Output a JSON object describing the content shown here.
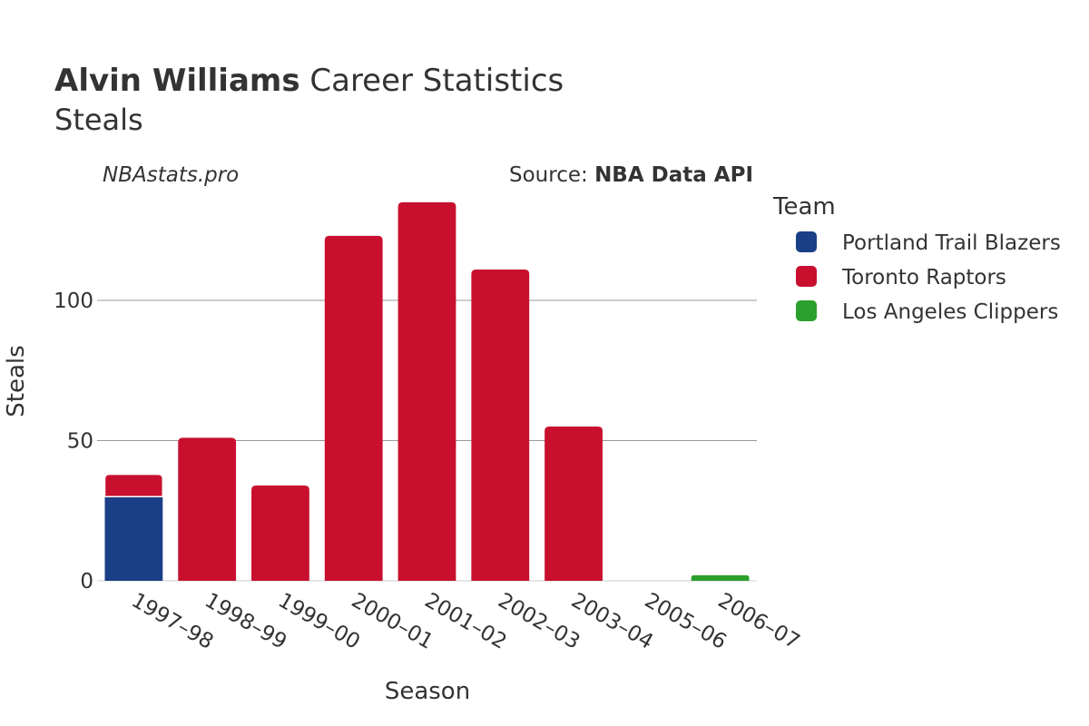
{
  "header": {
    "player_name": "Alvin Williams",
    "title_suffix": " Career Statistics",
    "subtitle": "Steals"
  },
  "watermark": "NBAstats.pro",
  "source": {
    "prefix": "Source: ",
    "name": "NBA Data API"
  },
  "legend": {
    "title": "Team",
    "items": [
      {
        "label": "Portland Trail Blazers",
        "color": "#1b3f86"
      },
      {
        "label": "Toronto Raptors",
        "color": "#c8102e"
      },
      {
        "label": "Los Angeles Clippers",
        "color": "#2ca02c"
      }
    ]
  },
  "chart_data": {
    "type": "bar",
    "stacked": true,
    "title": "Alvin Williams Career Statistics",
    "subtitle": "Steals",
    "xlabel": "Season",
    "ylabel": "Steals",
    "ylim": [
      0,
      135
    ],
    "yticks": [
      0,
      50,
      100
    ],
    "grid": true,
    "legend_position": "right",
    "categories": [
      "1997–98",
      "1998–99",
      "1999–00",
      "2000–01",
      "2001–02",
      "2002–03",
      "2003–04",
      "2005–06",
      "2006–07"
    ],
    "series": [
      {
        "name": "Portland Trail Blazers",
        "color": "#1b3f86",
        "values": [
          30,
          0,
          0,
          0,
          0,
          0,
          0,
          0,
          0
        ]
      },
      {
        "name": "Toronto Raptors",
        "color": "#c8102e",
        "values": [
          8,
          51,
          34,
          123,
          135,
          111,
          55,
          0,
          0
        ]
      },
      {
        "name": "Los Angeles Clippers",
        "color": "#2ca02c",
        "values": [
          0,
          0,
          0,
          0,
          0,
          0,
          0,
          0,
          2
        ]
      }
    ]
  }
}
